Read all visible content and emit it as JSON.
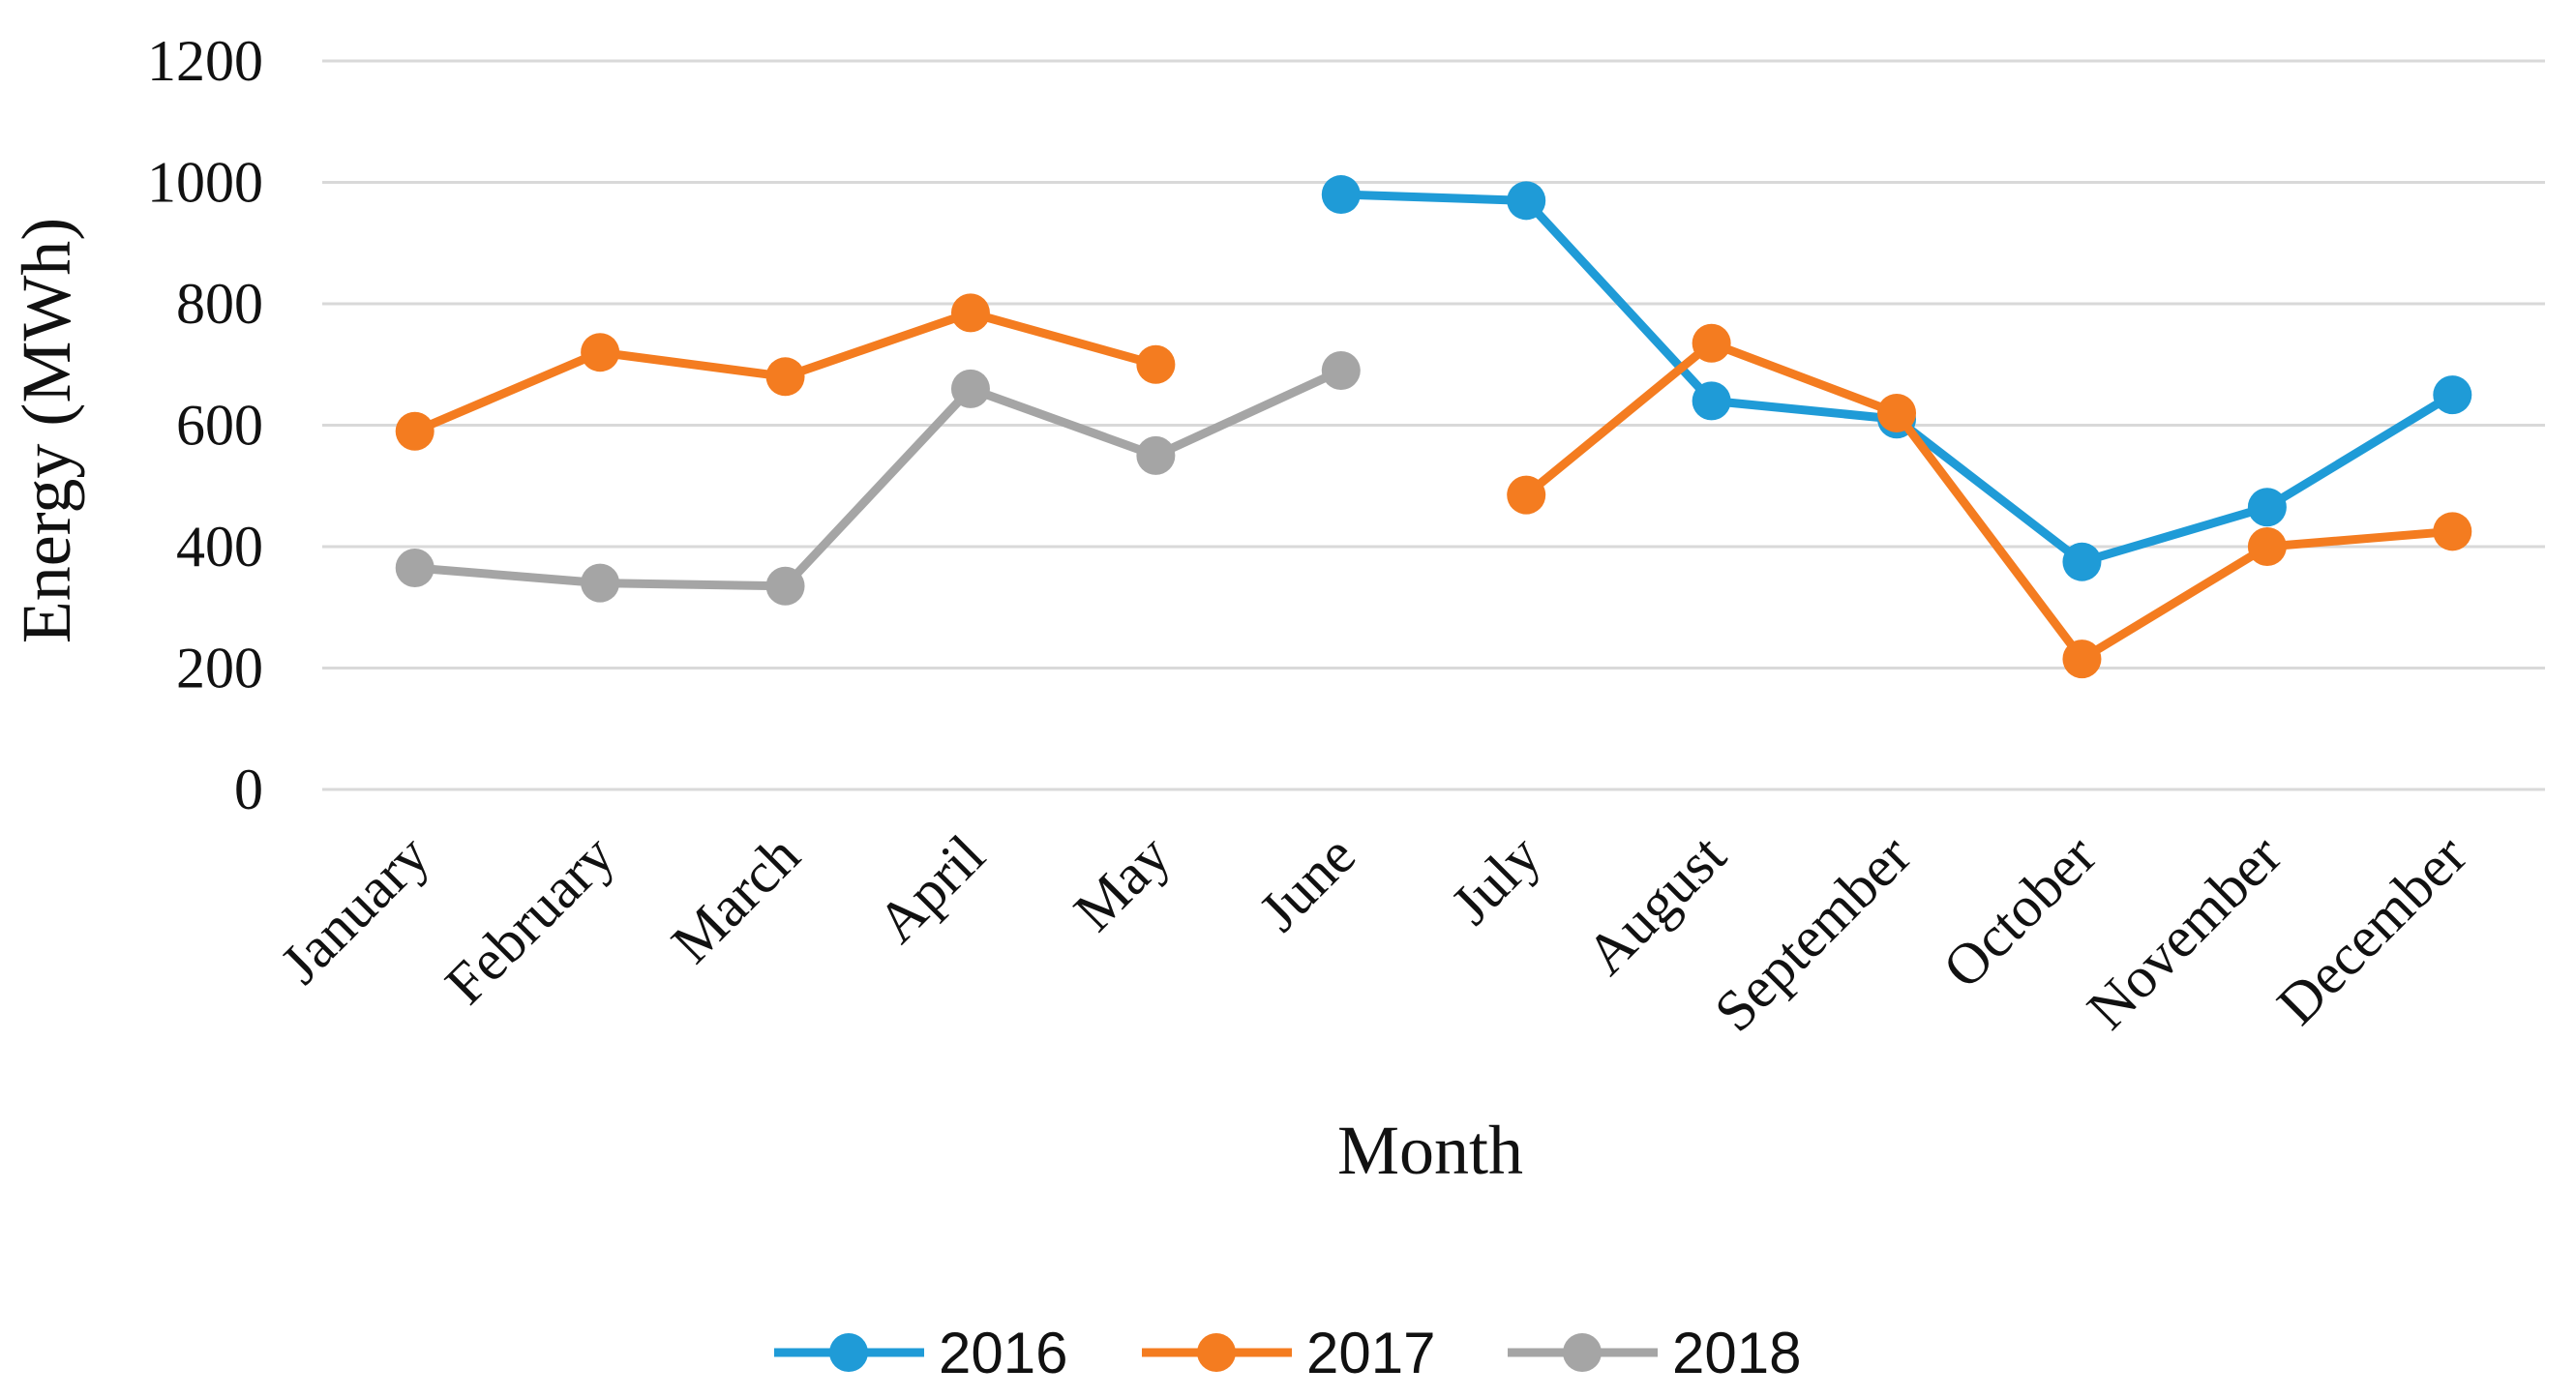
{
  "chart_data": {
    "type": "line",
    "title": "",
    "xlabel": "Month",
    "ylabel": "Energy (MWh)",
    "ylim": [
      0,
      1200
    ],
    "yticks": [
      0,
      200,
      400,
      600,
      800,
      1000,
      1200
    ],
    "ytick_labels": [
      "0",
      "200",
      "400",
      "600",
      "800",
      "1000",
      "1200"
    ],
    "grid": true,
    "legend_position": "bottom",
    "categories": [
      "January",
      "February",
      "March",
      "April",
      "May",
      "June",
      "July",
      "August",
      "September",
      "October",
      "November",
      "December"
    ],
    "series": [
      {
        "name": "2016",
        "color": "#1f9bd7",
        "values": [
          null,
          null,
          null,
          null,
          null,
          980,
          970,
          640,
          610,
          375,
          465,
          650
        ]
      },
      {
        "name": "2017",
        "color": "#f47c20",
        "values": [
          590,
          720,
          680,
          785,
          700,
          null,
          485,
          735,
          620,
          215,
          400,
          425
        ]
      },
      {
        "name": "2018",
        "color": "#a5a5a5",
        "values": [
          365,
          340,
          335,
          660,
          550,
          690,
          null,
          null,
          null,
          null,
          null,
          null
        ]
      }
    ]
  }
}
